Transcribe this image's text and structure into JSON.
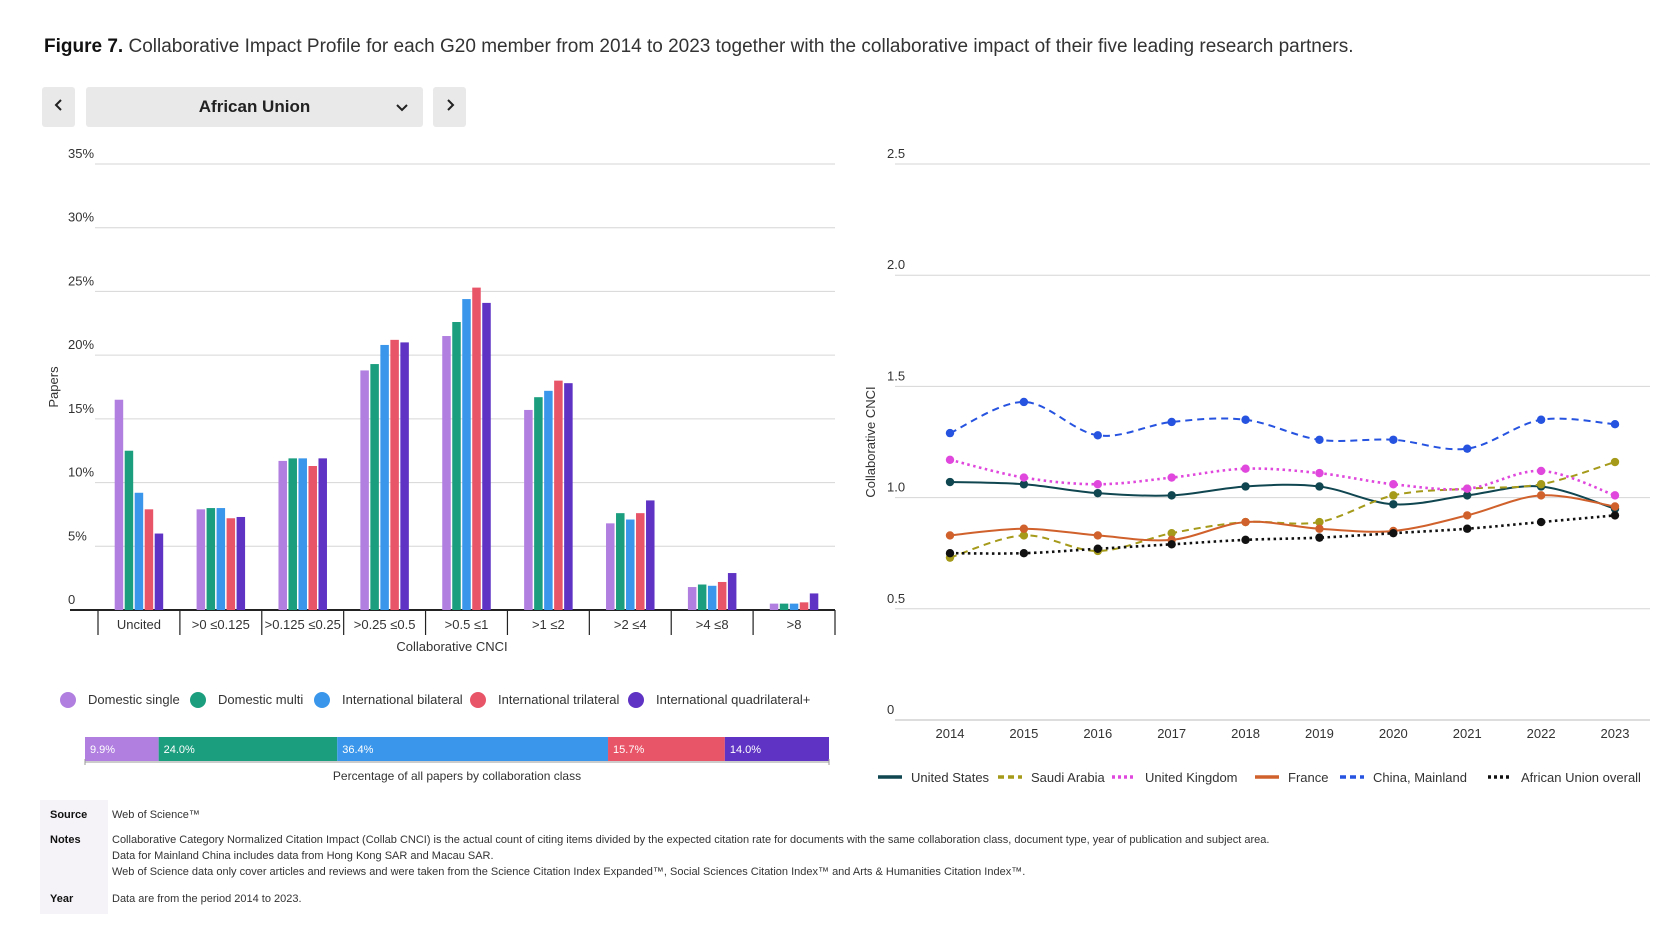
{
  "figure": {
    "label": "Figure 7.",
    "title": "Collaborative Impact Profile for each G20 member from 2014 to 2023 together with the collaborative impact of their five leading research partners."
  },
  "selector": {
    "prev_label": "‹",
    "next_label": "›",
    "selected": "African Union"
  },
  "chart_data": [
    {
      "type": "bar",
      "ylabel": "Papers",
      "xlabel": "Collaborative CNCI",
      "ylim": [
        0,
        35
      ],
      "y_ticks": [
        "0",
        "5%",
        "10%",
        "15%",
        "20%",
        "25%",
        "30%",
        "35%"
      ],
      "categories": [
        "Uncited",
        ">0 ≤0.125",
        ">0.125 ≤0.25",
        ">0.25 ≤0.5",
        ">0.5 ≤1",
        ">1 ≤2",
        ">2 ≤4",
        ">4 ≤8",
        ">8"
      ],
      "legend_position": "bottom",
      "grid": true,
      "series": [
        {
          "name": "Domestic single",
          "color": "#b07fe0",
          "values": [
            16.5,
            7.9,
            11.7,
            18.8,
            21.5,
            15.7,
            6.8,
            1.8,
            0.5
          ]
        },
        {
          "name": "Domestic multi",
          "color": "#1b9e7e",
          "values": [
            12.5,
            8.0,
            11.9,
            19.3,
            22.6,
            16.7,
            7.6,
            2.0,
            0.5
          ]
        },
        {
          "name": "International bilateral",
          "color": "#3a96ea",
          "values": [
            9.2,
            8.0,
            11.9,
            20.8,
            24.4,
            17.2,
            7.1,
            1.9,
            0.5
          ]
        },
        {
          "name": "International trilateral",
          "color": "#e85468",
          "values": [
            7.9,
            7.2,
            11.3,
            21.2,
            25.3,
            18.0,
            7.6,
            2.2,
            0.6
          ]
        },
        {
          "name": "International quadrilateral+",
          "color": "#5f33c4",
          "values": [
            6.0,
            7.3,
            11.9,
            21.0,
            24.1,
            17.8,
            8.6,
            2.9,
            1.3
          ]
        }
      ]
    },
    {
      "type": "stacked-bar",
      "title": "Percentage of all papers by collaboration class",
      "segments": [
        {
          "name": "Domestic single",
          "value": 9.9,
          "label": "9.9%",
          "color": "#b07fe0"
        },
        {
          "name": "Domestic multi",
          "value": 24.0,
          "label": "24.0%",
          "color": "#1b9e7e"
        },
        {
          "name": "International bilateral",
          "value": 36.4,
          "label": "36.4%",
          "color": "#3a96ea"
        },
        {
          "name": "International trilateral",
          "value": 15.7,
          "label": "15.7%",
          "color": "#e85468"
        },
        {
          "name": "International quadrilateral+",
          "value": 14.0,
          "label": "14.0%",
          "color": "#5f33c4"
        }
      ]
    },
    {
      "type": "line",
      "ylabel": "Collaborative CNCI",
      "ylim": [
        0,
        2.5
      ],
      "y_ticks": [
        "0",
        "0.5",
        "1.0",
        "1.5",
        "2.0",
        "2.5"
      ],
      "x": [
        "2014",
        "2015",
        "2016",
        "2017",
        "2018",
        "2019",
        "2020",
        "2021",
        "2022",
        "2023"
      ],
      "legend_position": "bottom",
      "grid": true,
      "series": [
        {
          "name": "United States",
          "color": "#0f4650",
          "dash": "solid",
          "values": [
            1.07,
            1.06,
            1.02,
            1.01,
            1.05,
            1.05,
            0.97,
            1.01,
            1.05,
            0.95
          ]
        },
        {
          "name": "Saudi Arabia",
          "color": "#a59a1a",
          "dash": "dashed",
          "values": [
            0.73,
            0.83,
            0.76,
            0.84,
            0.89,
            0.89,
            1.01,
            1.04,
            1.06,
            1.16
          ]
        },
        {
          "name": "United Kingdom",
          "color": "#e048dd",
          "dash": "dotted",
          "values": [
            1.17,
            1.09,
            1.06,
            1.09,
            1.13,
            1.11,
            1.06,
            1.04,
            1.12,
            1.01
          ]
        },
        {
          "name": "France",
          "color": "#d0612c",
          "dash": "solid",
          "values": [
            0.83,
            0.86,
            0.83,
            0.81,
            0.89,
            0.86,
            0.85,
            0.92,
            1.01,
            0.96
          ]
        },
        {
          "name": "China, Mainland",
          "color": "#2653e0",
          "dash": "dashed",
          "values": [
            1.29,
            1.43,
            1.28,
            1.34,
            1.35,
            1.26,
            1.26,
            1.22,
            1.35,
            1.33
          ]
        },
        {
          "name": "African Union overall",
          "color": "#111111",
          "dash": "dotted",
          "values": [
            0.75,
            0.75,
            0.77,
            0.79,
            0.81,
            0.82,
            0.84,
            0.86,
            0.89,
            0.92
          ]
        }
      ]
    }
  ],
  "footer": {
    "source_label": "Source",
    "source_text": "Web of Science™",
    "notes_label": "Notes",
    "notes_lines": [
      "Collaborative Category Normalized Citation Impact (Collab CNCI) is the actual count of citing items divided by the expected citation rate for documents with the same collaboration class, document type, year of publication and subject area.",
      "Data for Mainland China includes data from Hong Kong SAR and Macau SAR.",
      "Web of Science data only cover articles and reviews and were taken from the Science Citation Index Expanded™, Social Sciences Citation Index™ and Arts & Humanities Citation Index™."
    ],
    "year_label": "Year",
    "year_text": "Data are from the period 2014 to 2023."
  }
}
